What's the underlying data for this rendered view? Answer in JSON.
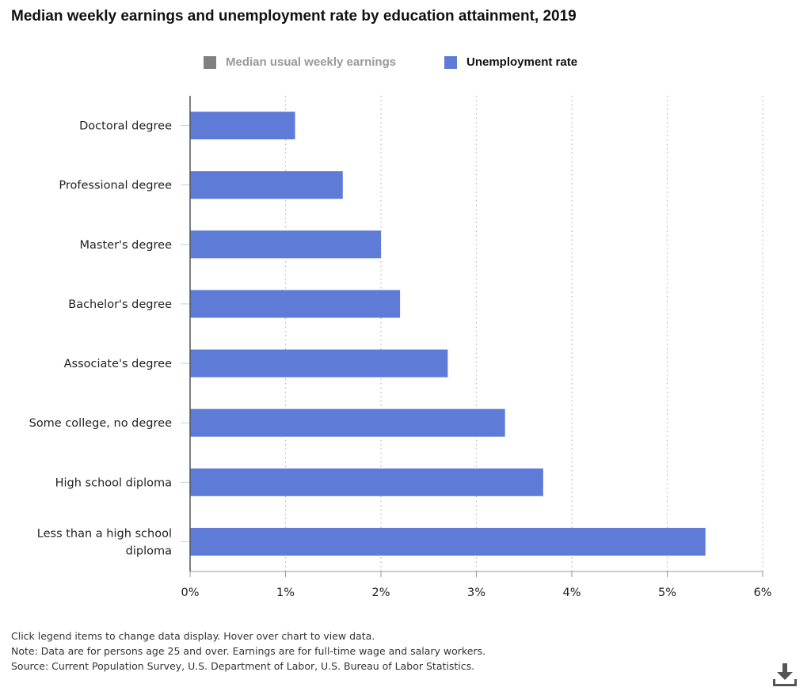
{
  "title": "Median weekly earnings and unemployment rate by education attainment, 2019",
  "legend": {
    "earnings": {
      "label": "Median usual weekly earnings",
      "color": "#808080",
      "active": false
    },
    "unemployment": {
      "label": "Unemployment rate",
      "color": "#5e7bd8",
      "active": true
    }
  },
  "chart_data": {
    "type": "bar",
    "orientation": "horizontal",
    "categories": [
      "Doctoral degree",
      "Professional degree",
      "Master's degree",
      "Bachelor's degree",
      "Associate's degree",
      "Some college, no degree",
      "High school diploma",
      "Less than a high school diploma"
    ],
    "series": [
      {
        "name": "Unemployment rate",
        "values": [
          1.1,
          1.6,
          2.0,
          2.2,
          2.7,
          3.3,
          3.7,
          5.4
        ],
        "color": "#5e7bd8"
      }
    ],
    "xlim": [
      0,
      6
    ],
    "x_ticks": [
      0,
      1,
      2,
      3,
      4,
      5,
      6
    ],
    "x_tick_labels": [
      "0%",
      "1%",
      "2%",
      "3%",
      "4%",
      "5%",
      "6%"
    ],
    "grid": true,
    "legend_position": "top"
  },
  "notes": [
    "Click legend items to change data display. Hover over chart to view data.",
    "Note: Data are for persons age 25 and over. Earnings are for full-time wage and salary workers.",
    "Source: Current Population Survey, U.S. Department of Labor, U.S. Bureau of Labor Statistics."
  ],
  "icons": {
    "download": "download-icon"
  }
}
